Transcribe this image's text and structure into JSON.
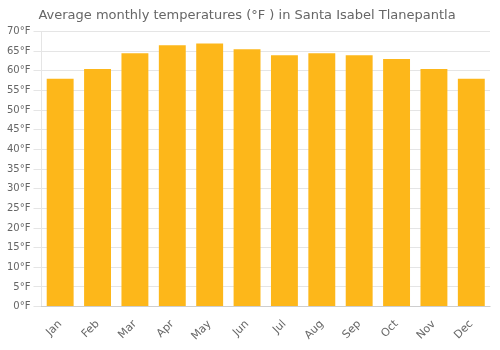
{
  "chart_data": {
    "type": "bar",
    "title": "Average monthly temperatures (°F ) in Santa Isabel Tlanepantla",
    "categories": [
      "Jan",
      "Feb",
      "Mar",
      "Apr",
      "May",
      "Jun",
      "Jul",
      "Aug",
      "Sep",
      "Oct",
      "Nov",
      "Dec"
    ],
    "values": [
      58,
      60.5,
      64.5,
      66.5,
      67,
      65.5,
      64,
      64.5,
      64,
      63,
      60.5,
      58
    ],
    "color": "#FDB71A",
    "ylim": [
      0,
      70
    ],
    "yticks": [
      {
        "value": 0,
        "label": "0°F"
      },
      {
        "value": 5,
        "label": "5°F"
      },
      {
        "value": 10,
        "label": "10°F"
      },
      {
        "value": 15,
        "label": "15°F"
      },
      {
        "value": 20,
        "label": "20°F"
      },
      {
        "value": 25,
        "label": "25°F"
      },
      {
        "value": 30,
        "label": "30°F"
      },
      {
        "value": 35,
        "label": "35°F"
      },
      {
        "value": 40,
        "label": "40°F"
      },
      {
        "value": 45,
        "label": "45°F"
      },
      {
        "value": 50,
        "label": "50°F"
      },
      {
        "value": 55,
        "label": "55°F"
      },
      {
        "value": 60,
        "label": "60°F"
      },
      {
        "value": 65,
        "label": "65°F"
      },
      {
        "value": 70,
        "label": "70°F"
      }
    ],
    "grid": "y"
  }
}
